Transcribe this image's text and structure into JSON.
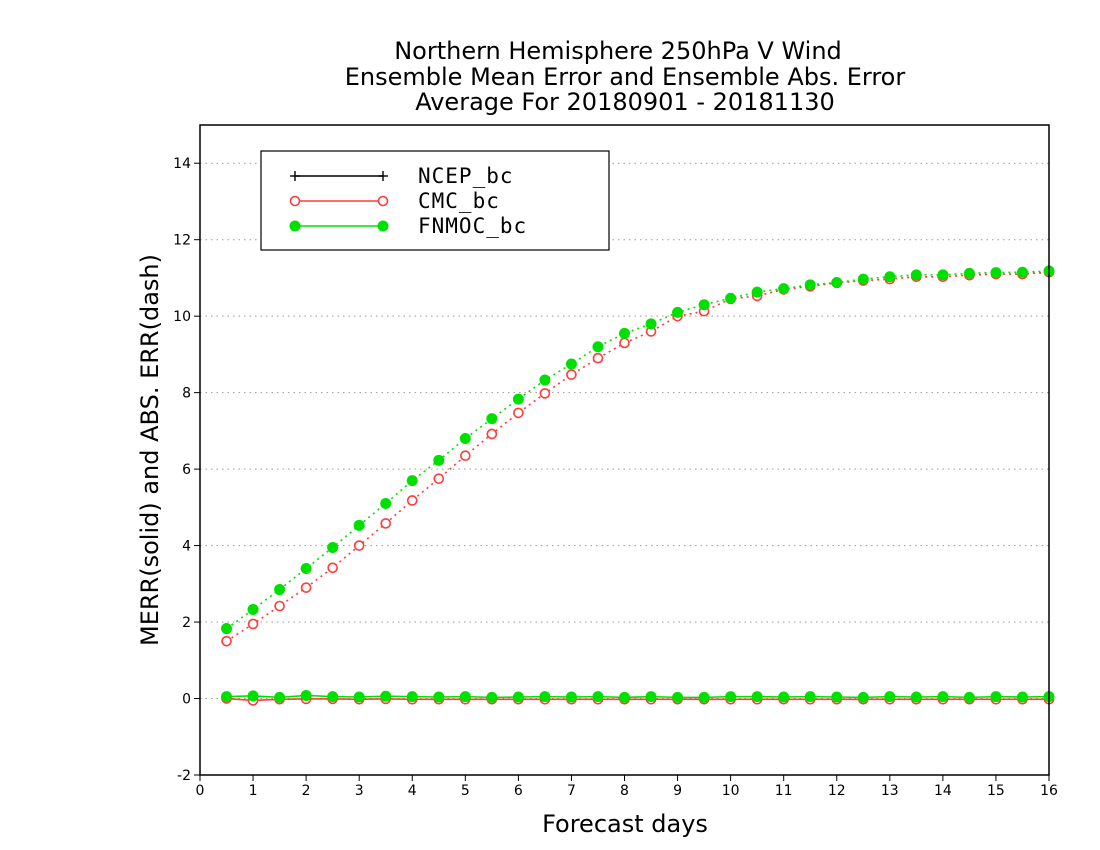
{
  "chart_data": {
    "type": "line",
    "title": [
      "Northern Hemisphere 250hPa V Wind",
      "Ensemble Mean Error and Ensemble Abs. Error",
      "Average For 20180901 - 20181130"
    ],
    "xlabel": "Forecast days",
    "ylabel": "MERR(solid) and ABS. ERR(dash)",
    "xlim": [
      0,
      16
    ],
    "ylim": [
      -2,
      15
    ],
    "x_ticks": [
      0,
      1,
      2,
      3,
      4,
      5,
      6,
      7,
      8,
      9,
      10,
      11,
      12,
      13,
      14,
      15,
      16
    ],
    "y_ticks": [
      -2,
      0,
      2,
      4,
      6,
      8,
      10,
      12,
      14
    ],
    "grid": "horizontal dotted",
    "legend_position": "top-left",
    "x": [
      0.5,
      1.0,
      1.5,
      2.0,
      2.5,
      3.0,
      3.5,
      4.0,
      4.5,
      5.0,
      5.5,
      6.0,
      6.5,
      7.0,
      7.5,
      8.0,
      8.5,
      9.0,
      9.5,
      10.0,
      10.5,
      11.0,
      11.5,
      12.0,
      12.5,
      13.0,
      13.5,
      14.0,
      14.5,
      15.0,
      15.5,
      16.0
    ],
    "series": [
      {
        "name": "NCEP_bc",
        "color": "#000000",
        "marker": "plus",
        "merr": [],
        "abs_err": []
      },
      {
        "name": "CMC_bc",
        "color": "#ff3b3b",
        "marker": "open-circle",
        "merr": [
          0.0,
          -0.05,
          -0.02,
          -0.01,
          -0.01,
          -0.02,
          -0.01,
          -0.02,
          -0.02,
          -0.02,
          -0.02,
          -0.02,
          -0.02,
          -0.02,
          -0.02,
          -0.02,
          -0.02,
          -0.02,
          -0.02,
          -0.02,
          -0.02,
          -0.02,
          -0.02,
          -0.02,
          -0.02,
          -0.02,
          -0.02,
          -0.02,
          -0.02,
          -0.02,
          -0.02,
          -0.02
        ],
        "abs_err": [
          1.5,
          1.95,
          2.42,
          2.9,
          3.42,
          4.0,
          4.58,
          5.18,
          5.75,
          6.35,
          6.92,
          7.47,
          7.98,
          8.47,
          8.9,
          9.3,
          9.6,
          10.0,
          10.13,
          10.45,
          10.53,
          10.7,
          10.78,
          10.87,
          10.93,
          10.97,
          11.03,
          11.03,
          11.07,
          11.1,
          11.1,
          11.15
        ]
      },
      {
        "name": "FNMOC_bc",
        "color": "#00e000",
        "marker": "filled-circle",
        "merr": [
          0.05,
          0.07,
          0.03,
          0.08,
          0.05,
          0.04,
          0.06,
          0.05,
          0.04,
          0.05,
          0.03,
          0.04,
          0.05,
          0.04,
          0.05,
          0.03,
          0.05,
          0.03,
          0.03,
          0.05,
          0.05,
          0.04,
          0.05,
          0.04,
          0.03,
          0.05,
          0.04,
          0.05,
          0.03,
          0.05,
          0.04,
          0.05
        ],
        "abs_err": [
          1.83,
          2.33,
          2.85,
          3.4,
          3.95,
          4.53,
          5.1,
          5.7,
          6.23,
          6.8,
          7.32,
          7.83,
          8.33,
          8.75,
          9.2,
          9.55,
          9.8,
          10.1,
          10.3,
          10.47,
          10.63,
          10.72,
          10.82,
          10.88,
          10.97,
          11.03,
          11.08,
          11.08,
          11.12,
          11.14,
          11.15,
          11.18
        ]
      }
    ]
  }
}
